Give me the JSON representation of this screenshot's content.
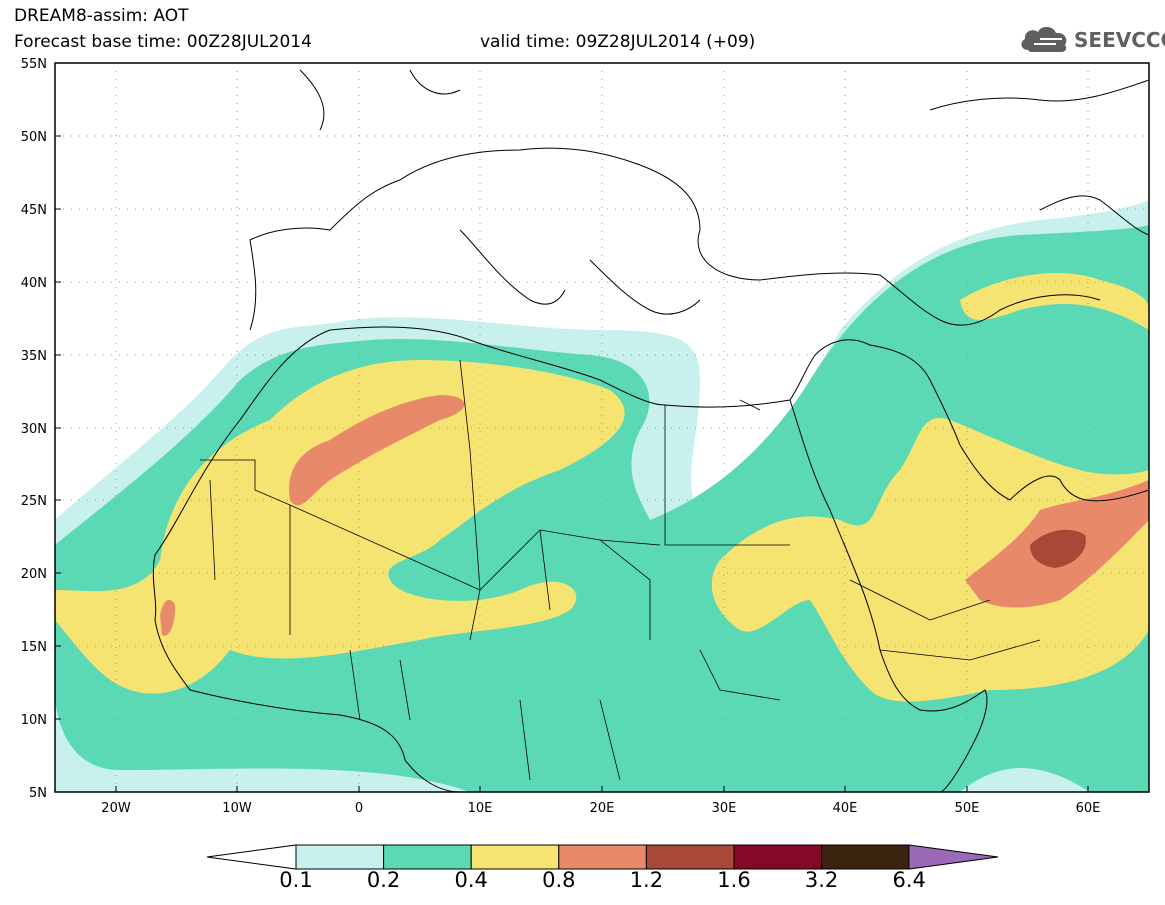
{
  "header": {
    "title": "DREAM8-assim: AOT",
    "base_time": "Forecast base time: 00Z28JUL2014",
    "valid_time": "valid time: 09Z28JUL2014 (+09)"
  },
  "logo": {
    "text": "SEEVCCC",
    "icon": "cloud-icon"
  },
  "map": {
    "lon_range": [
      -25,
      65
    ],
    "lat_range": [
      5,
      55
    ],
    "lon_ticks": [
      "20W",
      "10W",
      "0",
      "10E",
      "20E",
      "30E",
      "40E",
      "50E",
      "60E"
    ],
    "lat_ticks": [
      "55N",
      "50N",
      "45N",
      "40N",
      "35N",
      "30N",
      "25N",
      "20N",
      "15N",
      "10N",
      "5N"
    ],
    "grid": "dotted"
  },
  "colorbar": {
    "labels": [
      "0.1",
      "0.2",
      "0.4",
      "0.8",
      "1.2",
      "1.6",
      "3.2",
      "6.4"
    ],
    "colors": [
      "#ffffff",
      "#c8f0ec",
      "#5ad9b4",
      "#f5e372",
      "#e88a6a",
      "#a84838",
      "#850828",
      "#3a2410",
      "#9a6ab8"
    ]
  }
}
